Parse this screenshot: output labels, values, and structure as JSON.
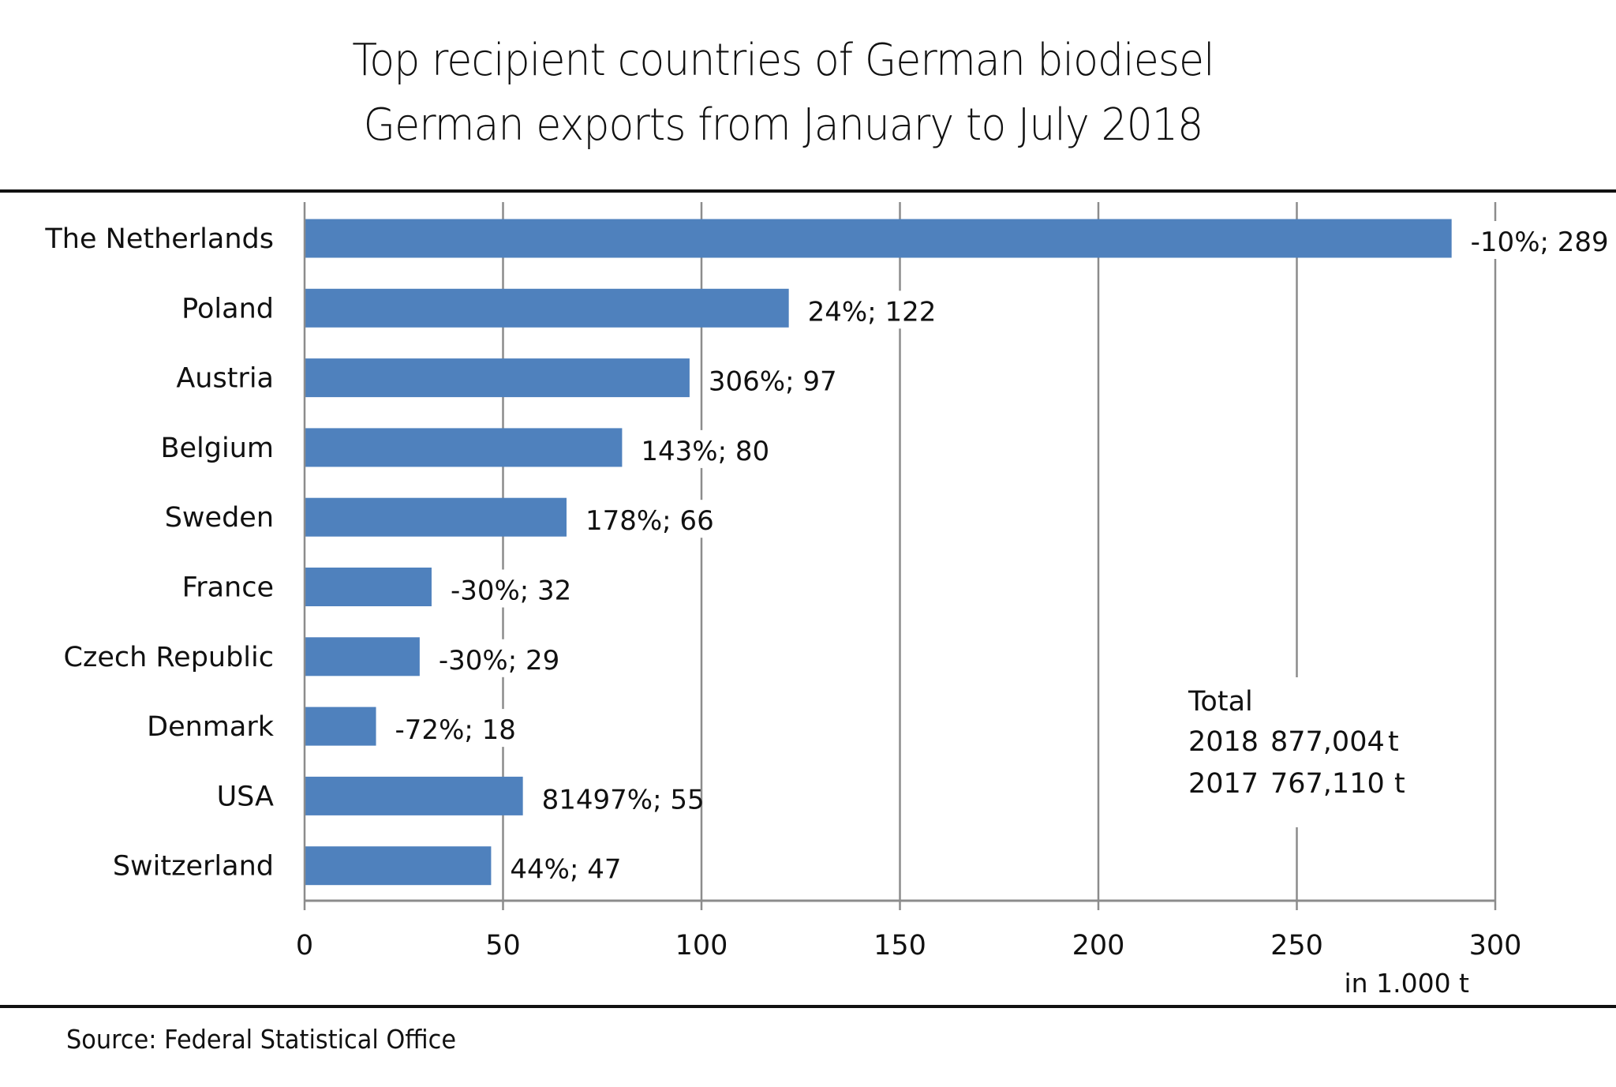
{
  "chart_data": {
    "type": "bar",
    "orientation": "horizontal",
    "title": "Top recipient countries of German biodiesel",
    "subtitle": "German exports from January to July 2018",
    "categories": [
      "The Netherlands",
      "Poland",
      "Austria",
      "Belgium",
      "Sweden",
      "France",
      "Czech Republic",
      "Denmark",
      "USA",
      "Switzerland"
    ],
    "values": [
      289,
      122,
      97,
      80,
      66,
      32,
      29,
      18,
      55,
      47
    ],
    "change_pct": [
      "-10%",
      "24%",
      "306%",
      "143%",
      "178%",
      "-30%",
      "-30%",
      "-72%",
      "81497%",
      "44%"
    ],
    "data_labels": [
      "-10%;  289",
      "24%;  122",
      "306%;  97",
      "143%;  80",
      "178%;  66",
      "-30%;  32",
      "-30%;  29",
      "-72%;  18",
      "81497%;  55",
      "44%;  47"
    ],
    "xlabel": "in 1.000  t",
    "ylabel": "",
    "xlim": [
      0,
      300
    ],
    "xticks": [
      0,
      50,
      100,
      150,
      200,
      250,
      300
    ],
    "grid": true,
    "bar_color": "#4F81BD",
    "annotation": {
      "title": "Total",
      "rows": [
        {
          "year": "2018",
          "value": "877,004",
          "unit": "t"
        },
        {
          "year": "2017",
          "value": "767,110",
          "unit": "t"
        }
      ]
    }
  },
  "source": "Source: Federal Statistical Office"
}
